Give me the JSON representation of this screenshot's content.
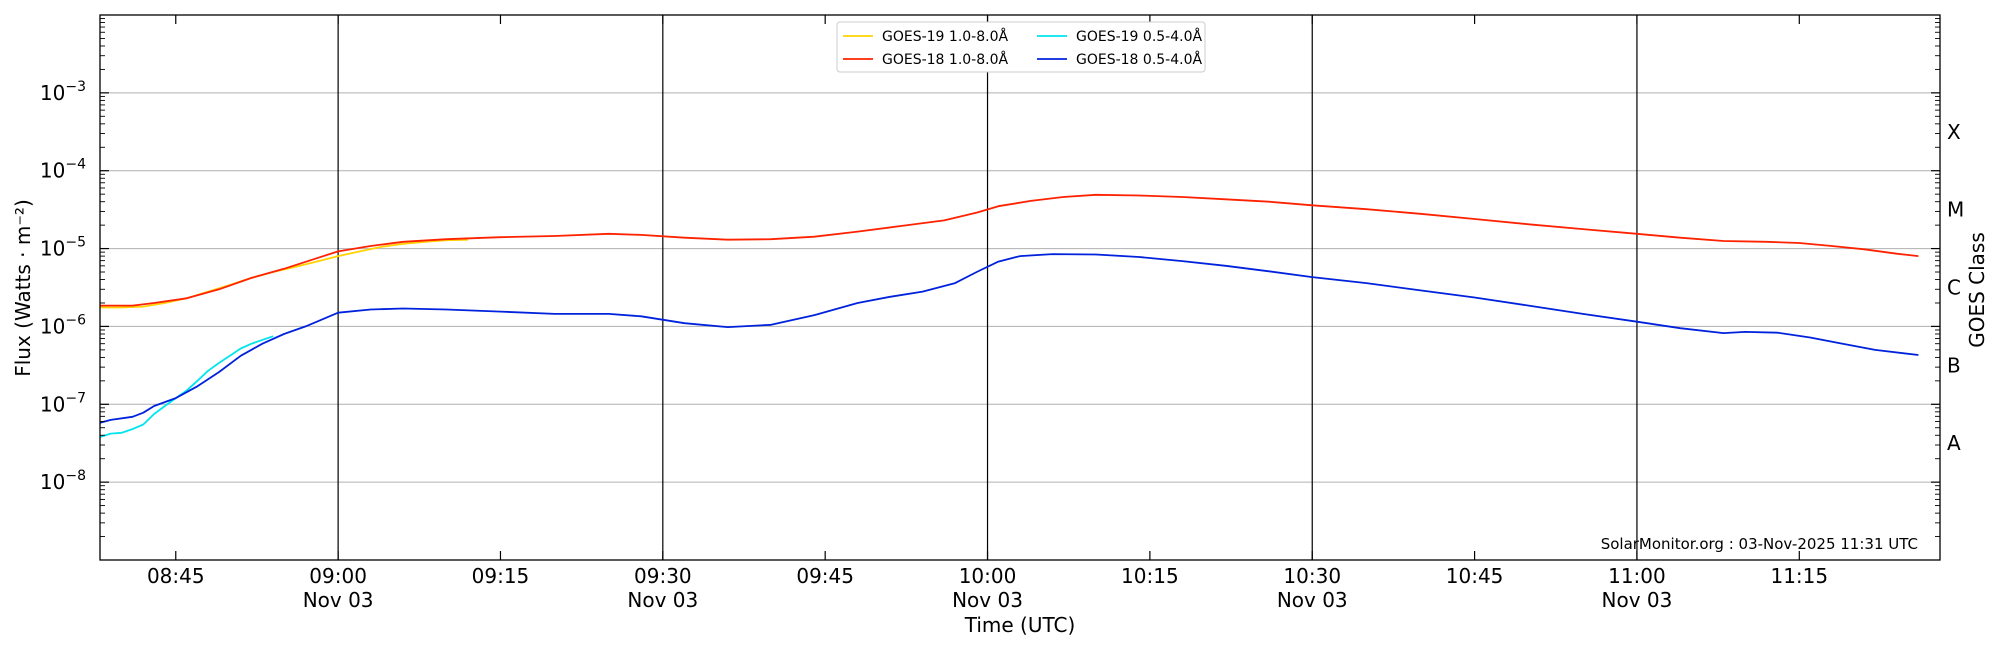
{
  "chart_data": {
    "type": "line",
    "title": "",
    "xlabel": "Time (UTC)",
    "ylabel": "Flux (Watts · m⁻²)",
    "y2label": "GOES Class",
    "yscale": "log",
    "ylim": [
      1e-09,
      0.01
    ],
    "xlim_minutes_range": [
      "08:38",
      "11:28"
    ],
    "xlim": [
      "08:38",
      "11:28"
    ],
    "grid": "horizontal at decades, vertical lines at half-hours",
    "legend_placement": "top-center",
    "watermark": "SolarMonitor.org : 03-Nov-2025 11:31 UTC",
    "yticks": [
      {
        "value": 0.001,
        "base": "10",
        "exp": "−3"
      },
      {
        "value": 0.0001,
        "base": "10",
        "exp": "−4"
      },
      {
        "value": 1e-05,
        "base": "10",
        "exp": "−5"
      },
      {
        "value": 1e-06,
        "base": "10",
        "exp": "−6"
      },
      {
        "value": 1e-07,
        "base": "10",
        "exp": "−7"
      },
      {
        "value": 1e-08,
        "base": "10",
        "exp": "−8"
      }
    ],
    "classes": [
      {
        "label": "X",
        "value": 0.000316
      },
      {
        "label": "M",
        "value": 3.16e-05
      },
      {
        "label": "C",
        "value": 3.16e-06
      },
      {
        "label": "B",
        "value": 3.16e-07
      },
      {
        "label": "A",
        "value": 3.16e-08
      }
    ],
    "xticks": [
      {
        "time": "08:45",
        "label": "08:45",
        "date": ""
      },
      {
        "time": "09:00",
        "label": "09:00",
        "date": "Nov 03"
      },
      {
        "time": "09:15",
        "label": "09:15",
        "date": ""
      },
      {
        "time": "09:30",
        "label": "09:30",
        "date": "Nov 03"
      },
      {
        "time": "09:45",
        "label": "09:45",
        "date": ""
      },
      {
        "time": "10:00",
        "label": "10:00",
        "date": "Nov 03"
      },
      {
        "time": "10:15",
        "label": "10:15",
        "date": ""
      },
      {
        "time": "10:30",
        "label": "10:30",
        "date": "Nov 03"
      },
      {
        "time": "10:45",
        "label": "10:45",
        "date": ""
      },
      {
        "time": "11:00",
        "label": "11:00",
        "date": "Nov 03"
      },
      {
        "time": "11:15",
        "label": "11:15",
        "date": ""
      }
    ],
    "series": [
      {
        "name": "GOES-19 1.0-8.0Å",
        "color": "#ffd200",
        "points": [
          [
            "08:38",
            1.75e-06
          ],
          [
            "08:40",
            1.75e-06
          ],
          [
            "08:42",
            1.8e-06
          ],
          [
            "08:44",
            2e-06
          ],
          [
            "08:46",
            2.3e-06
          ],
          [
            "08:48",
            2.8e-06
          ],
          [
            "08:50",
            3.4e-06
          ],
          [
            "08:52",
            4.2e-06
          ],
          [
            "08:54",
            5e-06
          ],
          [
            "08:56",
            5.8e-06
          ],
          [
            "08:58",
            6.8e-06
          ],
          [
            "09:00",
            8e-06
          ],
          [
            "09:02",
            9.2e-06
          ],
          [
            "09:04",
            1.05e-05
          ],
          [
            "09:06",
            1.15e-05
          ],
          [
            "09:08",
            1.22e-05
          ],
          [
            "09:10",
            1.28e-05
          ],
          [
            "09:12",
            1.3e-05
          ]
        ]
      },
      {
        "name": "GOES-18 1.0-8.0Å",
        "color": "#ff2200",
        "points": [
          [
            "08:38",
            1.85e-06
          ],
          [
            "08:41",
            1.85e-06
          ],
          [
            "08:43",
            2e-06
          ],
          [
            "08:46",
            2.3e-06
          ],
          [
            "08:49",
            3e-06
          ],
          [
            "08:52",
            4.2e-06
          ],
          [
            "08:55",
            5.5e-06
          ],
          [
            "08:58",
            7.5e-06
          ],
          [
            "09:00",
            9.2e-06
          ],
          [
            "09:03",
            1.08e-05
          ],
          [
            "09:06",
            1.22e-05
          ],
          [
            "09:10",
            1.32e-05
          ],
          [
            "09:15",
            1.4e-05
          ],
          [
            "09:20",
            1.45e-05
          ],
          [
            "09:25",
            1.55e-05
          ],
          [
            "09:28",
            1.5e-05
          ],
          [
            "09:32",
            1.38e-05
          ],
          [
            "09:36",
            1.3e-05
          ],
          [
            "09:40",
            1.32e-05
          ],
          [
            "09:44",
            1.42e-05
          ],
          [
            "09:48",
            1.65e-05
          ],
          [
            "09:52",
            1.95e-05
          ],
          [
            "09:56",
            2.3e-05
          ],
          [
            "09:59",
            2.9e-05
          ],
          [
            "10:01",
            3.5e-05
          ],
          [
            "10:04",
            4.1e-05
          ],
          [
            "10:07",
            4.6e-05
          ],
          [
            "10:10",
            4.9e-05
          ],
          [
            "10:14",
            4.8e-05
          ],
          [
            "10:18",
            4.6e-05
          ],
          [
            "10:22",
            4.3e-05
          ],
          [
            "10:26",
            4e-05
          ],
          [
            "10:30",
            3.6e-05
          ],
          [
            "10:35",
            3.2e-05
          ],
          [
            "10:40",
            2.8e-05
          ],
          [
            "10:45",
            2.4e-05
          ],
          [
            "10:50",
            2.05e-05
          ],
          [
            "10:55",
            1.78e-05
          ],
          [
            "11:00",
            1.55e-05
          ],
          [
            "11:04",
            1.38e-05
          ],
          [
            "11:08",
            1.25e-05
          ],
          [
            "11:12",
            1.22e-05
          ],
          [
            "11:15",
            1.18e-05
          ],
          [
            "11:18",
            1.08e-05
          ],
          [
            "11:21",
            9.8e-06
          ],
          [
            "11:24",
            8.6e-06
          ],
          [
            "11:26",
            8e-06
          ]
        ]
      },
      {
        "name": "GOES-19 0.5-4.0Å",
        "color": "#00e5ee",
        "points": [
          [
            "08:38",
            3.8e-08
          ],
          [
            "08:39",
            4.2e-08
          ],
          [
            "08:40",
            4.3e-08
          ],
          [
            "08:41",
            4.8e-08
          ],
          [
            "08:42",
            5.5e-08
          ],
          [
            "08:43",
            7.5e-08
          ],
          [
            "08:44",
            9.5e-08
          ],
          [
            "08:45",
            1.2e-07
          ],
          [
            "08:46",
            1.5e-07
          ],
          [
            "08:47",
            2e-07
          ],
          [
            "08:48",
            2.7e-07
          ],
          [
            "08:49",
            3.4e-07
          ],
          [
            "08:50",
            4.2e-07
          ],
          [
            "08:51",
            5.2e-07
          ],
          [
            "08:52",
            6e-07
          ],
          [
            "08:54",
            7.5e-07
          ]
        ]
      },
      {
        "name": "GOES-18 0.5-4.0Å",
        "color": "#0022dd",
        "points": [
          [
            "08:38",
            5.8e-08
          ],
          [
            "08:39",
            6.3e-08
          ],
          [
            "08:41",
            6.9e-08
          ],
          [
            "08:42",
            7.8e-08
          ],
          [
            "08:43",
            9.5e-08
          ],
          [
            "08:45",
            1.2e-07
          ],
          [
            "08:47",
            1.7e-07
          ],
          [
            "08:49",
            2.6e-07
          ],
          [
            "08:51",
            4.2e-07
          ],
          [
            "08:53",
            6e-07
          ],
          [
            "08:55",
            8e-07
          ],
          [
            "08:57",
            1e-06
          ],
          [
            "09:00",
            1.5e-06
          ],
          [
            "09:03",
            1.65e-06
          ],
          [
            "09:06",
            1.7e-06
          ],
          [
            "09:10",
            1.65e-06
          ],
          [
            "09:15",
            1.55e-06
          ],
          [
            "09:20",
            1.45e-06
          ],
          [
            "09:25",
            1.45e-06
          ],
          [
            "09:28",
            1.35e-06
          ],
          [
            "09:32",
            1.1e-06
          ],
          [
            "09:36",
            9.8e-07
          ],
          [
            "09:40",
            1.05e-06
          ],
          [
            "09:44",
            1.4e-06
          ],
          [
            "09:48",
            2e-06
          ],
          [
            "09:51",
            2.4e-06
          ],
          [
            "09:54",
            2.8e-06
          ],
          [
            "09:57",
            3.6e-06
          ],
          [
            "09:59",
            5e-06
          ],
          [
            "10:01",
            6.8e-06
          ],
          [
            "10:03",
            8e-06
          ],
          [
            "10:06",
            8.5e-06
          ],
          [
            "10:10",
            8.4e-06
          ],
          [
            "10:14",
            7.8e-06
          ],
          [
            "10:18",
            6.9e-06
          ],
          [
            "10:22",
            6e-06
          ],
          [
            "10:26",
            5.1e-06
          ],
          [
            "10:30",
            4.3e-06
          ],
          [
            "10:35",
            3.6e-06
          ],
          [
            "10:40",
            2.9e-06
          ],
          [
            "10:45",
            2.35e-06
          ],
          [
            "10:50",
            1.85e-06
          ],
          [
            "10:55",
            1.45e-06
          ],
          [
            "11:00",
            1.15e-06
          ],
          [
            "11:04",
            9.5e-07
          ],
          [
            "11:08",
            8.2e-07
          ],
          [
            "11:10",
            8.5e-07
          ],
          [
            "11:13",
            8.3e-07
          ],
          [
            "11:16",
            7.2e-07
          ],
          [
            "11:19",
            6e-07
          ],
          [
            "11:22",
            5e-07
          ],
          [
            "11:26",
            4.3e-07
          ]
        ]
      }
    ]
  }
}
